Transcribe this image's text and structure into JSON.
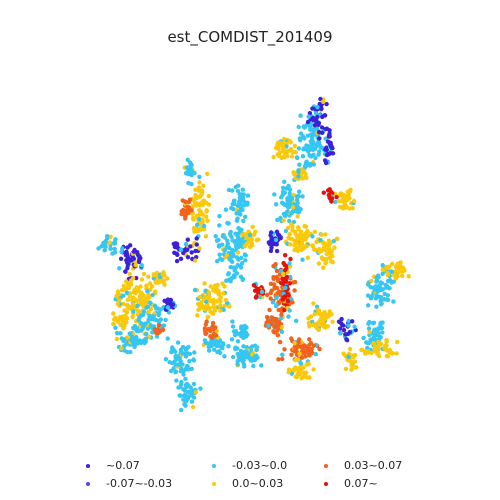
{
  "title": "est_COMDIST_201409",
  "legend": [
    {
      "label": "~0.07",
      "color": "#3b22d8"
    },
    {
      "label": "-0.07~-0.03",
      "color": "#6a3ee8"
    },
    {
      "label": "-0.03~0.0",
      "color": "#35c6f2"
    },
    {
      "label": "0.0~0.03",
      "color": "#fbc90b"
    },
    {
      "label": "0.03~0.07",
      "color": "#f3621c"
    },
    {
      "label": "0.07~",
      "color": "#e3130c"
    }
  ]
}
